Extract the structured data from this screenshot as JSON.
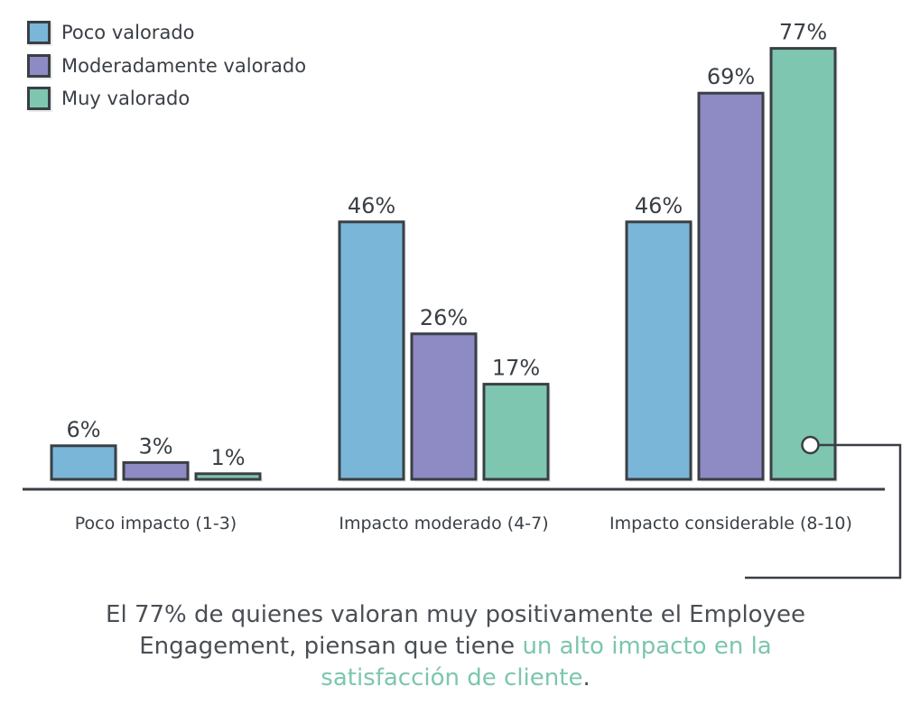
{
  "chart_data": {
    "type": "bar",
    "categories": [
      "Poco impacto (1-3)",
      "Impacto moderado (4-7)",
      "Impacto considerable (8-10)"
    ],
    "series": [
      {
        "name": "Poco valorado",
        "values": [
          6,
          46,
          46
        ],
        "color": "#7ab6d8"
      },
      {
        "name": "Moderadamente valorado",
        "values": [
          3,
          26,
          69
        ],
        "color": "#8d8ac4"
      },
      {
        "name": "Muy valorado",
        "values": [
          1,
          17,
          77
        ],
        "color": "#7fc6b0"
      }
    ],
    "value_suffix": "%",
    "ylim": [
      0,
      80
    ],
    "legend_position": "top-left",
    "grid": false
  },
  "caption": {
    "part1": "El 77% de quienes valoran muy positivamente el Employee",
    "part2": "Engagement, piensan que tiene ",
    "highlight": "un alto impacto en la",
    "part3_highlight": "satisfacción de cliente",
    "part3_end": "."
  },
  "colors": {
    "outline": "#3a3f45",
    "highlight": "#7cc6ae"
  }
}
